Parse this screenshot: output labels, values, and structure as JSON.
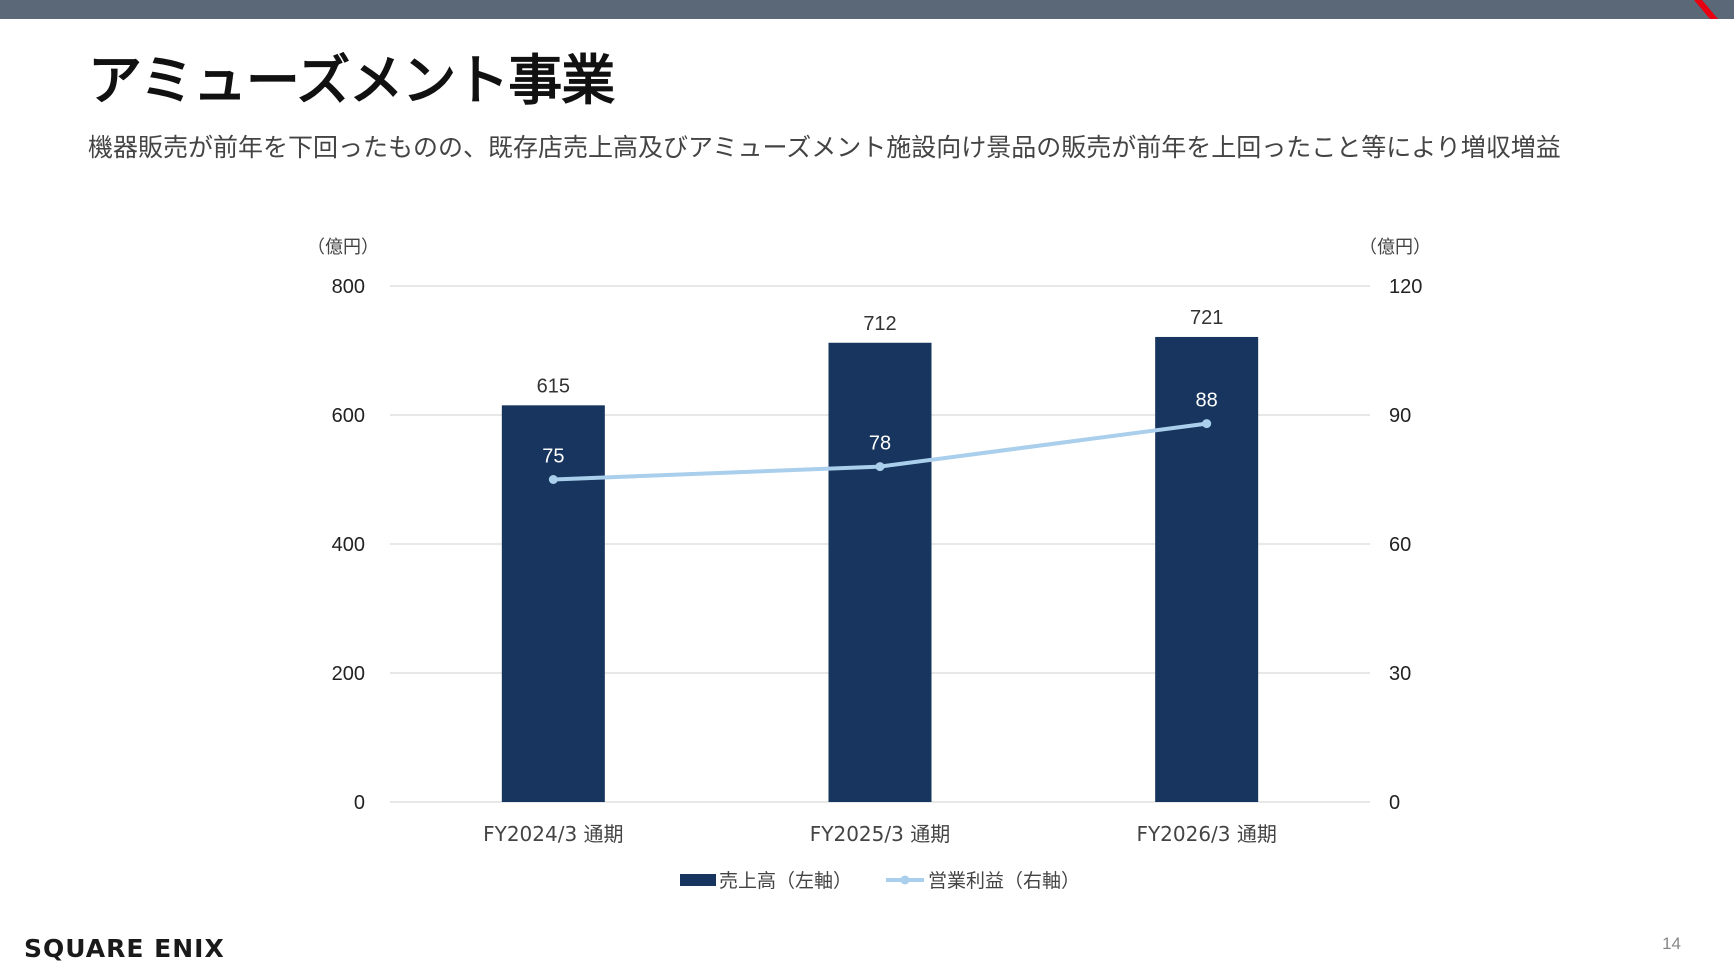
{
  "header": {
    "title": "アミューズメント事業",
    "subtitle": "機器販売が前年を下回ったものの、既存店売上高及びアミューズメント施設向け景品の販売が前年を上回ったこと等により増収増益"
  },
  "chart_data": {
    "type": "bar",
    "categories": [
      "FY2024/3 通期",
      "FY2025/3 通期",
      "FY2026/3 通期"
    ],
    "series": [
      {
        "name": "売上高（左軸）",
        "type": "bar",
        "axis": "left",
        "values": [
          615,
          712,
          721
        ],
        "color": "#17355e"
      },
      {
        "name": "営業利益（右軸）",
        "type": "line",
        "axis": "right",
        "values": [
          75,
          78,
          88
        ],
        "color": "#a9cfec"
      }
    ],
    "y_left": {
      "unit_label": "（億円）",
      "range": [
        0,
        800
      ],
      "ticks": [
        0,
        200,
        400,
        600,
        800
      ]
    },
    "y_right": {
      "unit_label": "（億円）",
      "range": [
        0,
        120
      ],
      "ticks": [
        0,
        30,
        60,
        90,
        120
      ]
    },
    "grid": true,
    "legend_position": "bottom-center"
  },
  "footer": {
    "brand": "SQUARE ENIX",
    "page_number": "14"
  },
  "colors": {
    "top_bar": "#5a6878",
    "accent": "#e60012",
    "bar": "#17355e",
    "line": "#a9cfec",
    "gridline": "#d9d9d9"
  }
}
